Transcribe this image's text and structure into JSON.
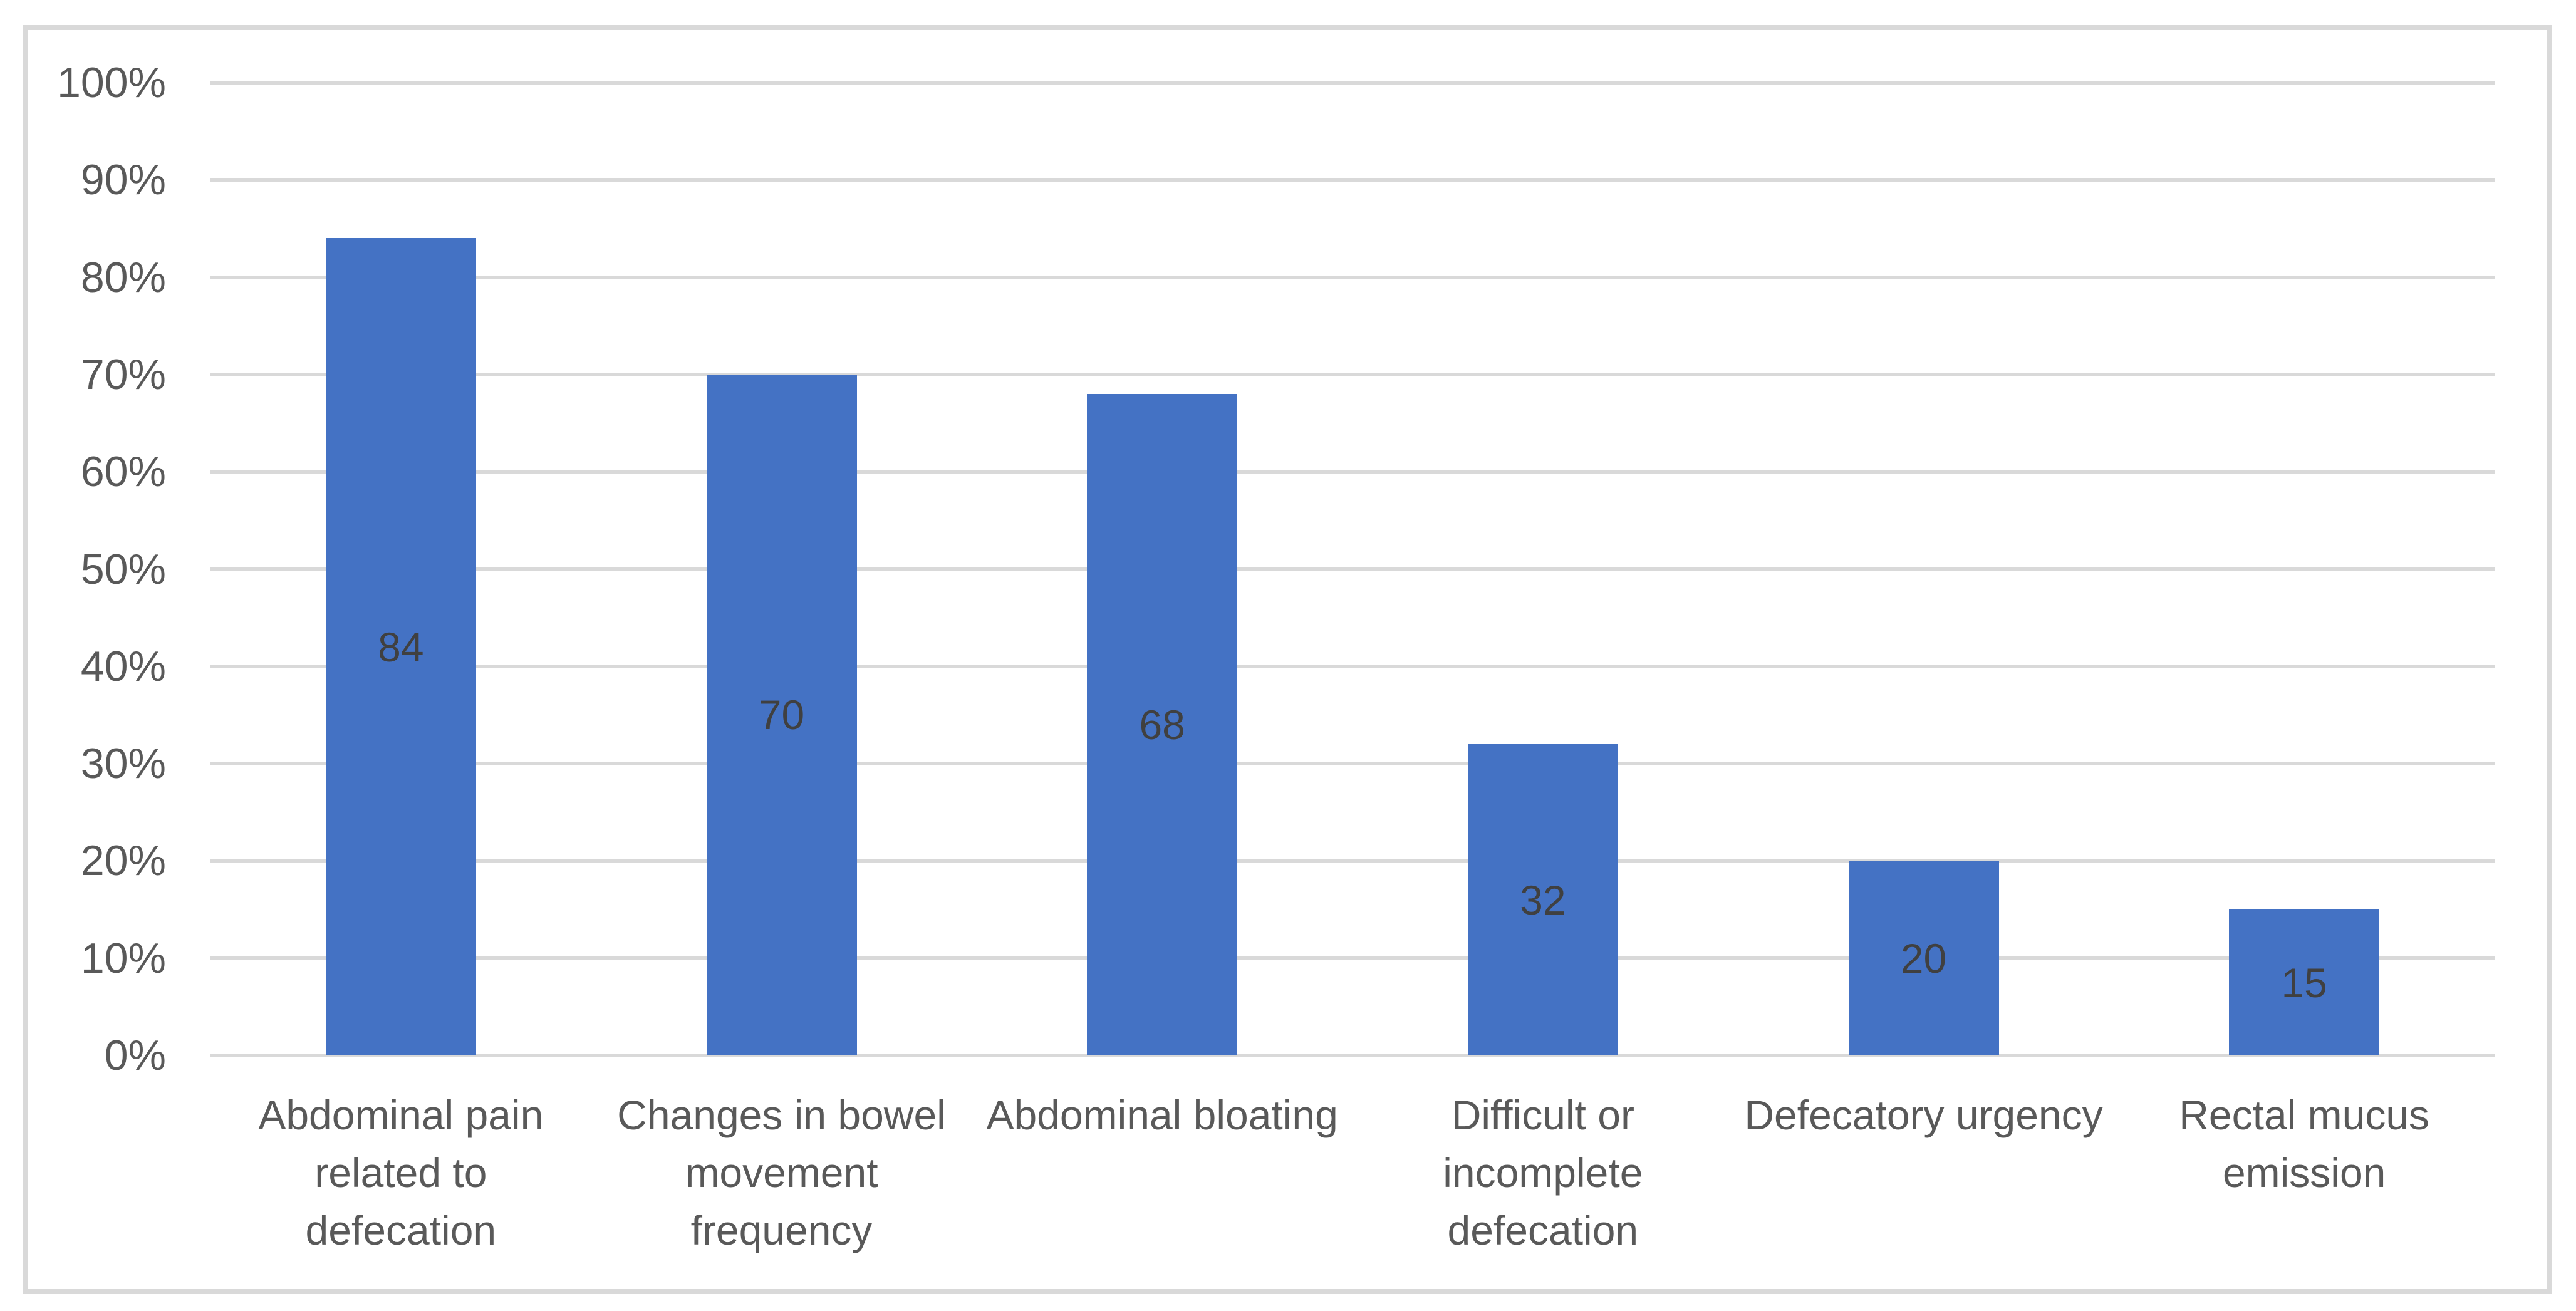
{
  "chart_data": {
    "type": "bar",
    "title": "",
    "xlabel": "",
    "ylabel": "",
    "legend": "none",
    "grid": "horizontal",
    "ylim": [
      0,
      100
    ],
    "ytick_step": 10,
    "yticks": [
      "0%",
      "10%",
      "20%",
      "30%",
      "40%",
      "50%",
      "60%",
      "70%",
      "80%",
      "90%",
      "100%"
    ],
    "categories": [
      "Abdominal pain related to defecation",
      "Changes in bowel movement frequency",
      "Abdominal bloating",
      "Difficult or incomplete defecation",
      "Defecatory urgency",
      "Rectal mucus emission"
    ],
    "categories_display": [
      "Abdominal pain\nrelated to\ndefecation",
      "Changes in bowel\nmovement\nfrequency",
      "Abdominal bloating",
      "Difficult or\nincomplete\ndefecation",
      "Defecatory urgency",
      "Rectal mucus\nemission"
    ],
    "values": [
      84,
      70,
      68,
      32,
      20,
      15
    ],
    "data_labels": [
      "84",
      "70",
      "68",
      "32",
      "20",
      "15"
    ],
    "colors": {
      "bar": "#4472C4",
      "data_label": "#404040",
      "axis_text": "#595959",
      "gridline": "#D9D9D9",
      "chart_border": "#D9D9D9",
      "background": "#FFFFFF"
    }
  }
}
